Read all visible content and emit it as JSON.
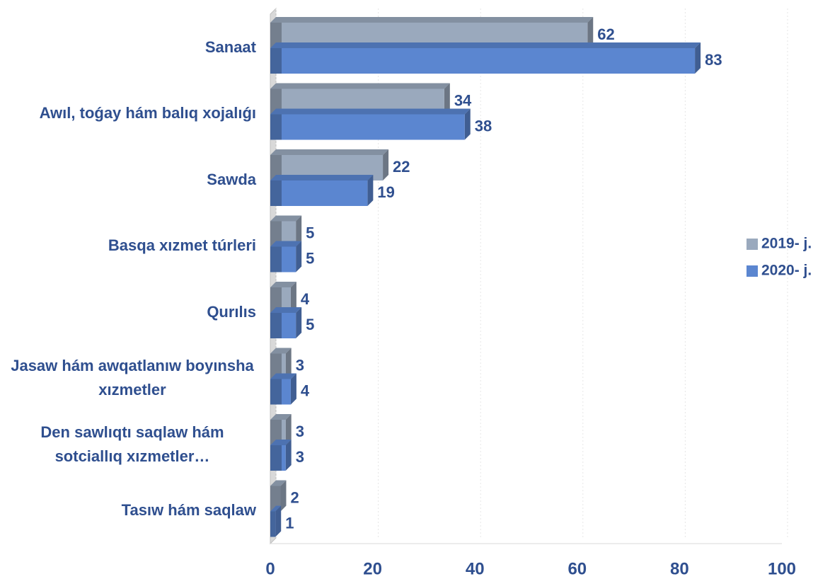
{
  "chart_data": {
    "type": "bar",
    "orientation": "horizontal",
    "categories": [
      "Sanaat",
      "Awıl, toǵay hám balıq xojalıǵı",
      "Sawda",
      "Basqa xızmet túrleri",
      "Qurılıs",
      "Jasaw hám awqatlanıw boyınsha xızmetler",
      "Den sawlıqtı saqlaw hám sotciallıq xızmetler…",
      "Tasıw hám saqlaw"
    ],
    "series": [
      {
        "name": "2019- j.",
        "color": "#9aa9bd",
        "values": [
          62,
          34,
          22,
          5,
          4,
          3,
          3,
          2
        ]
      },
      {
        "name": "2020- j.",
        "color": "#5b86d0",
        "values": [
          83,
          38,
          19,
          5,
          5,
          4,
          3,
          1
        ]
      }
    ],
    "xlim": [
      0,
      100
    ],
    "xticks": [
      0,
      20,
      40,
      60,
      80,
      100
    ],
    "grid": true,
    "legend": "right"
  }
}
